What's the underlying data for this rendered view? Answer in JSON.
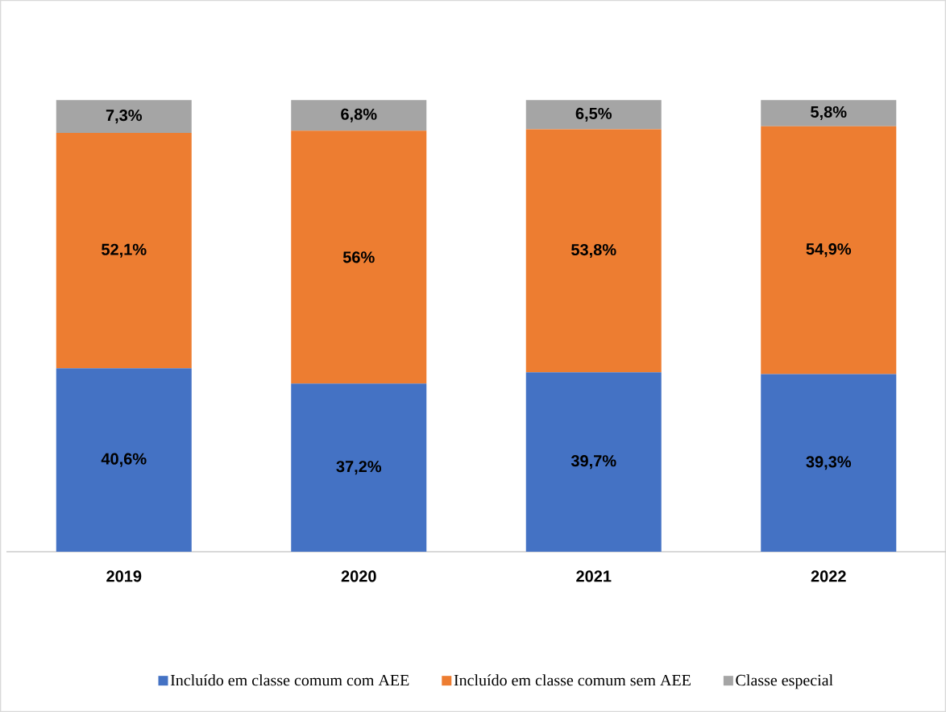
{
  "chart_data": {
    "type": "bar",
    "stacked": true,
    "categories": [
      "2019",
      "2020",
      "2021",
      "2022"
    ],
    "legend": "bottom",
    "series": [
      {
        "name": "Incluído em classe comum com AEE",
        "color": "#4472c4",
        "values": [
          40.6,
          37.2,
          39.7,
          39.3
        ],
        "value_labels": [
          "40,6%",
          "37,2%",
          "39,7%",
          "39,3%"
        ]
      },
      {
        "name": "Incluído em classe comum sem AEE",
        "color": "#ed7d31",
        "values": [
          52.1,
          56,
          53.8,
          54.9
        ],
        "value_labels": [
          "52,1%",
          "56%",
          "53,8%",
          "54,9%"
        ]
      },
      {
        "name": "Classe especial",
        "color": "#a5a5a5",
        "values": [
          7.3,
          6.8,
          6.5,
          5.8
        ],
        "value_labels": [
          "7,3%",
          "6,8%",
          "6,5%",
          "5,8%"
        ]
      }
    ]
  }
}
